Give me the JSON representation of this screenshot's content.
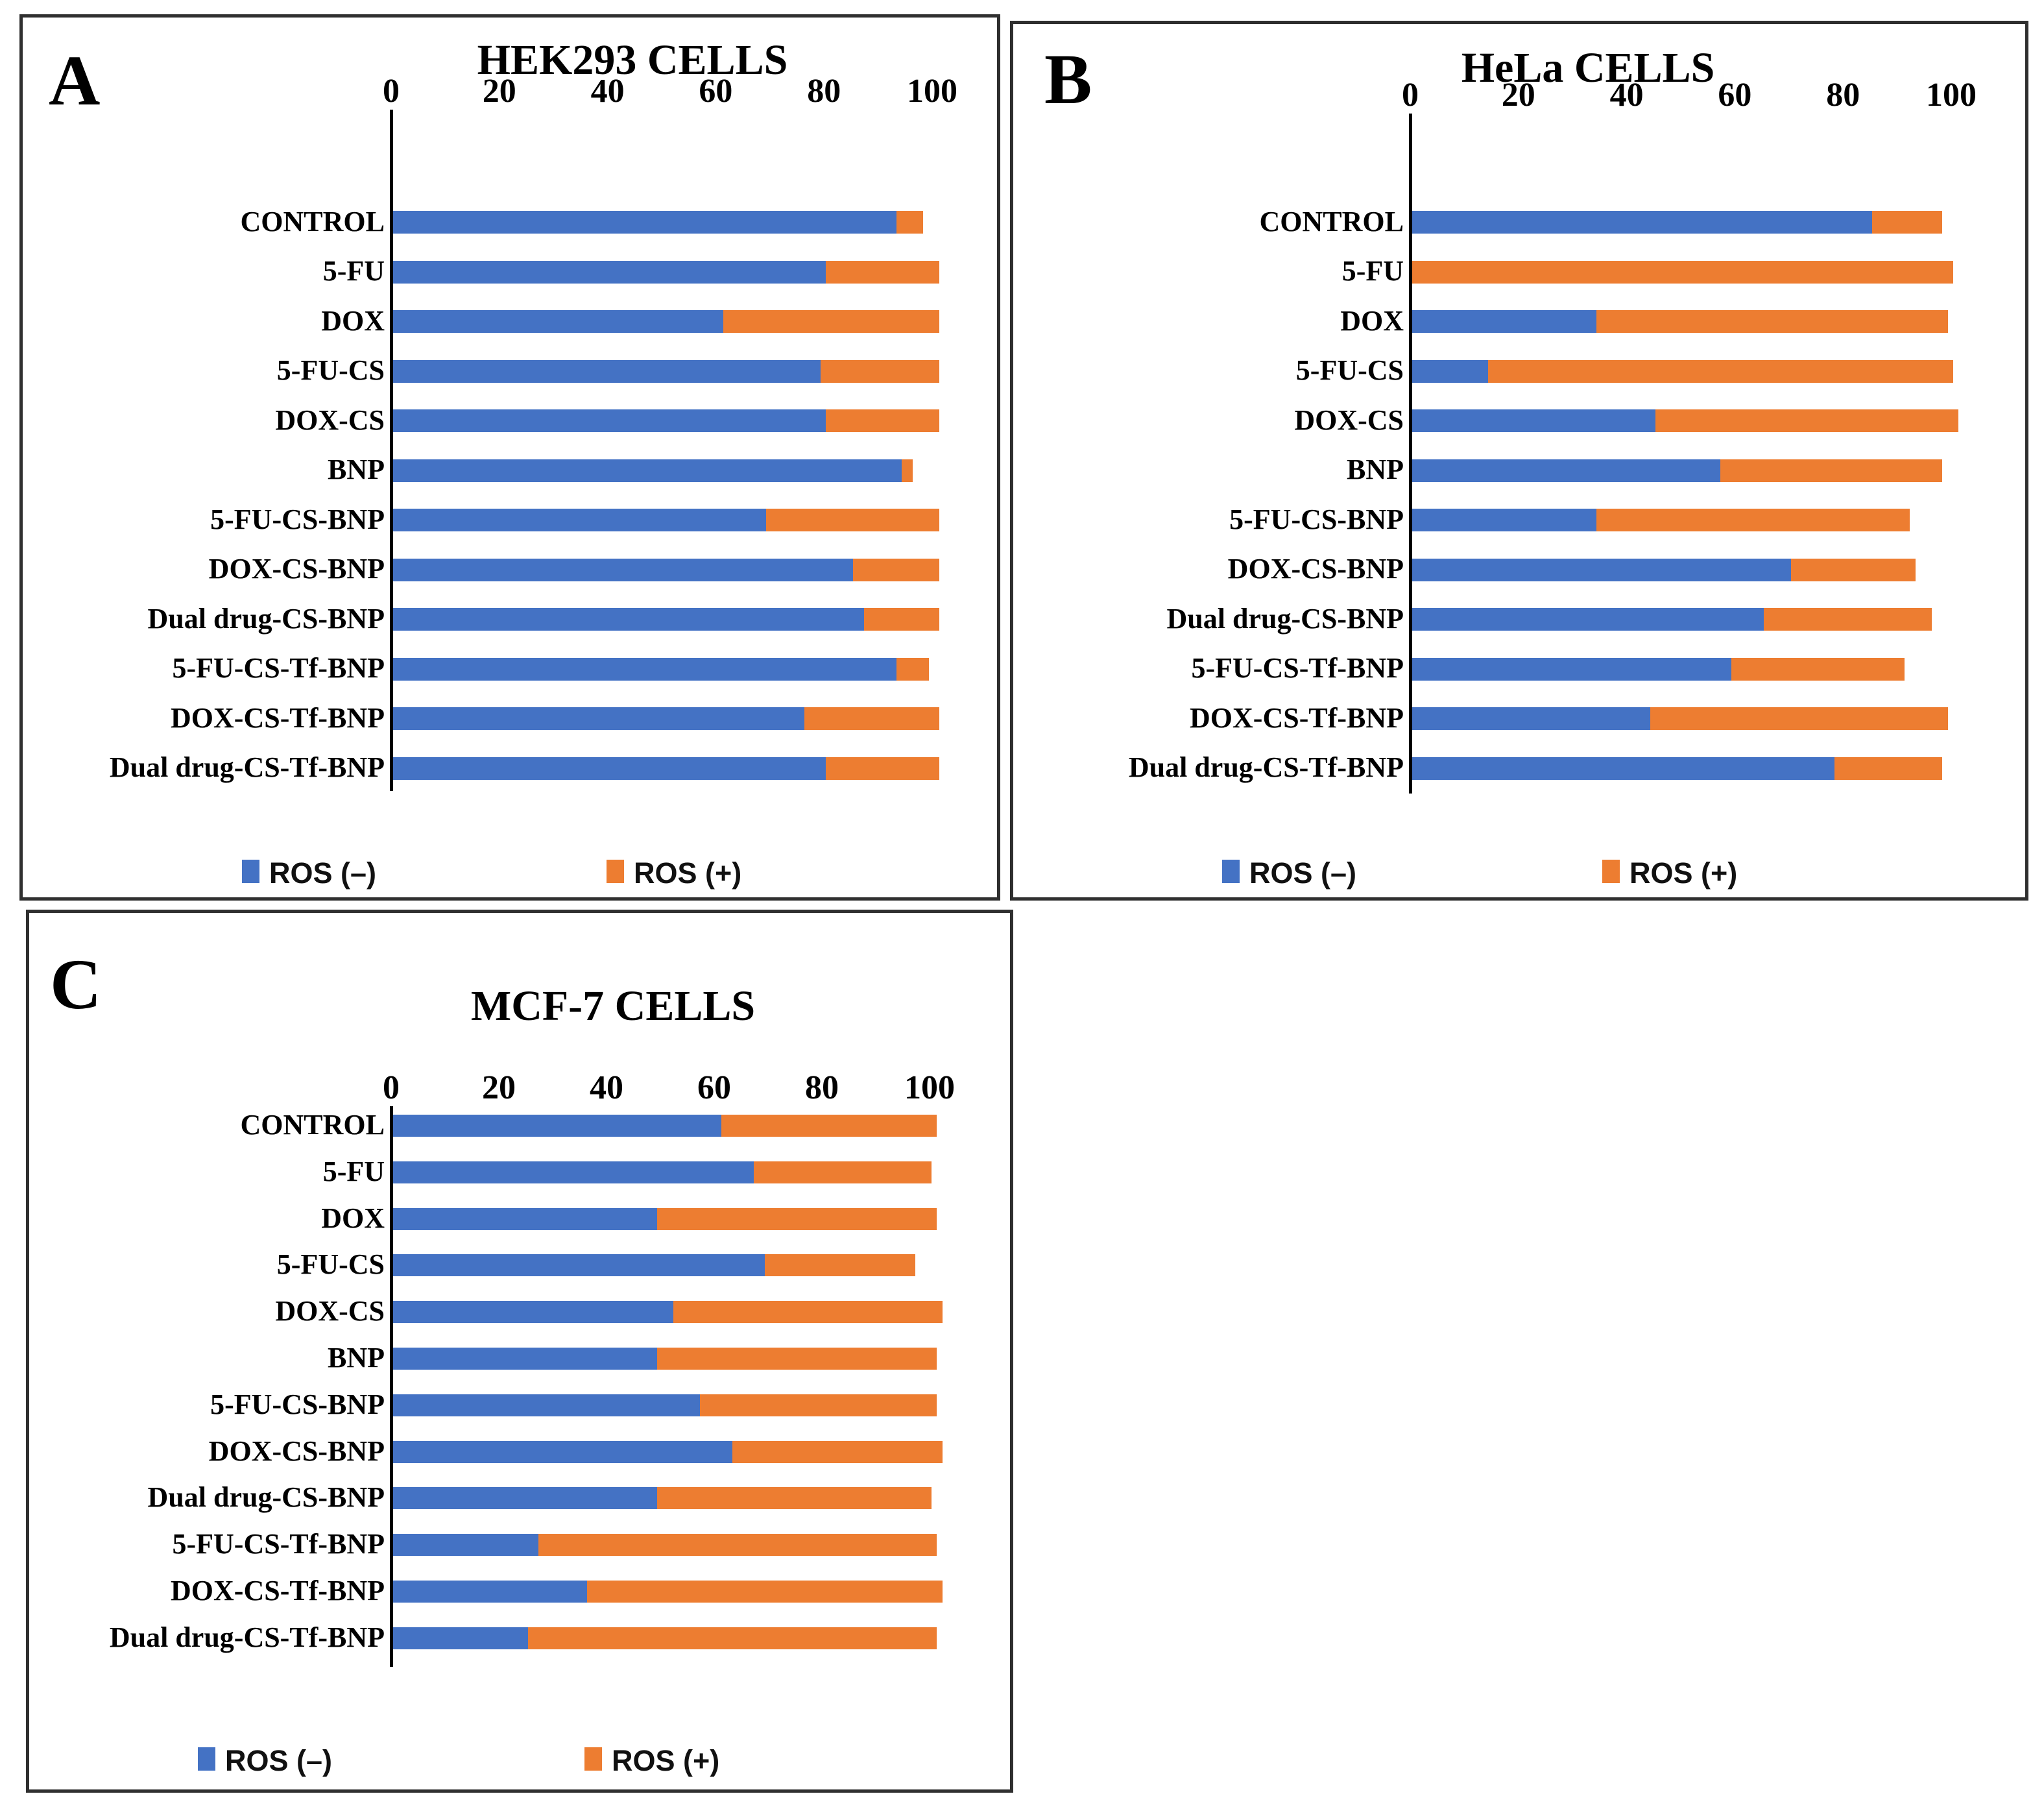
{
  "figure": {
    "background": "#ffffff",
    "border_color": "#2f2f2f",
    "colors": {
      "ros_negative": "#4472C4",
      "ros_positive": "#ED7D31"
    },
    "legend": {
      "negative_label": "ROS (–)",
      "positive_label": "ROS (+)"
    }
  },
  "chart_data": [
    {
      "type": "bar",
      "panel": "A",
      "title": "HEK293 CELLS",
      "orientation": "horizontal_stacked",
      "xlim": [
        0,
        100
      ],
      "xticks": [
        0,
        20,
        40,
        60,
        80,
        100
      ],
      "grid": false,
      "legend_position": "bottom",
      "legend": [
        "ROS (–)",
        "ROS (+)"
      ],
      "categories": [
        "CONTROL",
        "5-FU",
        "DOX",
        "5-FU-CS",
        "DOX-CS",
        "BNP",
        "5-FU-CS-BNP",
        "DOX-CS-BNP",
        "Dual drug-CS-BNP",
        "5-FU-CS-Tf-BNP",
        "DOX-CS-Tf-BNP",
        "Dual drug-CS-Tf-BNP"
      ],
      "series": [
        {
          "name": "ROS (–)",
          "color": "#4472C4",
          "values": [
            93,
            80,
            61,
            79,
            80,
            94,
            69,
            85,
            87,
            93,
            76,
            80
          ]
        },
        {
          "name": "ROS (+)",
          "color": "#ED7D31",
          "values": [
            5,
            21,
            40,
            22,
            21,
            2,
            32,
            16,
            14,
            6,
            25,
            21
          ]
        }
      ]
    },
    {
      "type": "bar",
      "panel": "B",
      "title": "HeLa CELLS",
      "orientation": "horizontal_stacked",
      "xlim": [
        0,
        100
      ],
      "xticks": [
        0,
        20,
        40,
        60,
        80,
        100
      ],
      "grid": false,
      "legend_position": "bottom",
      "legend": [
        "ROS (–)",
        "ROS (+)"
      ],
      "categories": [
        "CONTROL",
        "5-FU",
        "DOX",
        "5-FU-CS",
        "DOX-CS",
        "BNP",
        "5-FU-CS-BNP",
        "DOX-CS-BNP",
        "Dual drug-CS-BNP",
        "5-FU-CS-Tf-BNP",
        "DOX-CS-Tf-BNP",
        "Dual drug-CS-Tf-BNP"
      ],
      "series": [
        {
          "name": "ROS (–)",
          "color": "#4472C4",
          "values": [
            85,
            0,
            34,
            14,
            45,
            57,
            34,
            70,
            65,
            59,
            44,
            78
          ]
        },
        {
          "name": "ROS (+)",
          "color": "#ED7D31",
          "values": [
            13,
            100,
            65,
            86,
            56,
            41,
            58,
            23,
            31,
            32,
            55,
            20
          ]
        }
      ]
    },
    {
      "type": "bar",
      "panel": "C",
      "title": "MCF-7 CELLS",
      "orientation": "horizontal_stacked",
      "xlim": [
        0,
        100
      ],
      "xticks": [
        0,
        20,
        40,
        60,
        80,
        100
      ],
      "grid": false,
      "legend_position": "bottom",
      "legend": [
        "ROS (–)",
        "ROS (+)"
      ],
      "categories": [
        "CONTROL",
        "5-FU",
        "DOX",
        "5-FU-CS",
        "DOX-CS",
        "BNP",
        "5-FU-CS-BNP",
        "DOX-CS-BNP",
        "Dual drug-CS-BNP",
        "5-FU-CS-Tf-BNP",
        "DOX-CS-Tf-BNP",
        "Dual drug-CS-Tf-BNP"
      ],
      "series": [
        {
          "name": "ROS (–)",
          "color": "#4472C4",
          "values": [
            61,
            67,
            49,
            69,
            52,
            49,
            57,
            63,
            49,
            27,
            36,
            25
          ]
        },
        {
          "name": "ROS (+)",
          "color": "#ED7D31",
          "values": [
            40,
            33,
            52,
            28,
            50,
            52,
            44,
            39,
            51,
            74,
            66,
            76
          ]
        }
      ]
    }
  ]
}
